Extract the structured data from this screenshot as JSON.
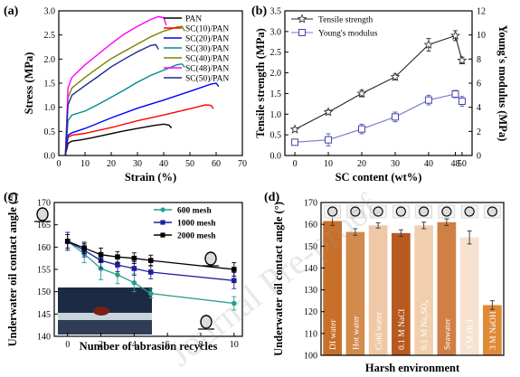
{
  "watermark": "Journal Pre-proof",
  "chart_data": [
    {
      "panel": "(a)",
      "type": "line",
      "xlabel": "Strain (%)",
      "ylabel": "Stress (MPa)",
      "xlim": [
        0,
        70
      ],
      "ylim": [
        0,
        3.0
      ],
      "xticks": [
        0,
        10,
        20,
        30,
        40,
        50,
        60,
        70
      ],
      "yticks": [
        0.0,
        0.5,
        1.0,
        1.5,
        2.0,
        2.5,
        3.0
      ],
      "legend_position": "top-right",
      "series": [
        {
          "name": "PAN",
          "color": "#000000",
          "x": [
            2.5,
            3.5,
            5,
            8,
            12,
            18,
            24,
            30,
            36,
            40,
            42,
            43
          ],
          "y": [
            0.0,
            0.25,
            0.3,
            0.32,
            0.36,
            0.43,
            0.5,
            0.56,
            0.62,
            0.65,
            0.63,
            0.57
          ]
        },
        {
          "name": "SC(10)/PAN",
          "color": "#ff0000",
          "x": [
            2.5,
            3.5,
            5,
            10,
            20,
            30,
            40,
            50,
            56,
            58,
            59
          ],
          "y": [
            0.0,
            0.38,
            0.42,
            0.46,
            0.58,
            0.72,
            0.84,
            0.97,
            1.05,
            1.04,
            0.97
          ]
        },
        {
          "name": "SC(20)/PAN",
          "color": "#0000ff",
          "x": [
            2.5,
            3.5,
            5,
            10,
            20,
            30,
            40,
            50,
            58,
            60,
            61
          ],
          "y": [
            0.0,
            0.42,
            0.47,
            0.56,
            0.78,
            0.98,
            1.15,
            1.33,
            1.48,
            1.5,
            1.43
          ]
        },
        {
          "name": "SC(30)/PAN",
          "color": "#008b8b",
          "x": [
            2.5,
            3.5,
            5,
            10,
            15,
            20,
            25,
            30,
            35,
            40,
            45,
            47,
            48
          ],
          "y": [
            0.0,
            0.72,
            0.84,
            0.92,
            1.06,
            1.21,
            1.36,
            1.52,
            1.66,
            1.77,
            1.88,
            1.9,
            1.83
          ]
        },
        {
          "name": "SC(40)/PAN",
          "color": "#808000",
          "x": [
            2.5,
            3.5,
            5,
            10,
            15,
            20,
            25,
            30,
            35,
            40,
            45,
            47,
            48
          ],
          "y": [
            0.0,
            1.2,
            1.4,
            1.62,
            1.82,
            2.01,
            2.16,
            2.31,
            2.46,
            2.58,
            2.66,
            2.68,
            2.58
          ]
        },
        {
          "name": "SC(48)/PAN",
          "color": "#ff00ff",
          "x": [
            2.5,
            3.5,
            5,
            10,
            15,
            20,
            25,
            30,
            35,
            38,
            40,
            41
          ],
          "y": [
            0.0,
            1.4,
            1.62,
            1.88,
            2.1,
            2.32,
            2.52,
            2.68,
            2.82,
            2.88,
            2.86,
            2.7
          ]
        },
        {
          "name": "SC(50)/PAN",
          "color": "#1a2a8c",
          "x": [
            2.5,
            3.5,
            5,
            10,
            15,
            20,
            25,
            30,
            35,
            37,
            38
          ],
          "y": [
            0.0,
            1.05,
            1.25,
            1.45,
            1.64,
            1.84,
            2.0,
            2.15,
            2.28,
            2.3,
            2.2
          ]
        }
      ]
    },
    {
      "panel": "(b)",
      "type": "line",
      "xlabel": "SC content (wt%)",
      "ylabel": "Tensile strength (MPa)",
      "ylabel_right": "Young's modulus (MPa)",
      "xlim": [
        -3,
        53
      ],
      "ylim": [
        0,
        3.5
      ],
      "ylim_right": [
        0,
        12
      ],
      "xticks": [
        0,
        10,
        20,
        30,
        40,
        48,
        50
      ],
      "yticks": [
        0.0,
        0.5,
        1.0,
        1.5,
        2.0,
        2.5,
        3.0,
        3.5
      ],
      "yticks_right": [
        0,
        2,
        4,
        6,
        8,
        10,
        12
      ],
      "legend_position": "top-left",
      "series": [
        {
          "name": "Tensile strength",
          "marker": "star",
          "axis": "left",
          "x": [
            0,
            10,
            20,
            30,
            40,
            48,
            50
          ],
          "y": [
            0.63,
            1.05,
            1.5,
            1.9,
            2.68,
            2.9,
            2.3
          ],
          "err": [
            0.04,
            0.05,
            0.08,
            0.07,
            0.15,
            0.12,
            0.08
          ]
        },
        {
          "name": "Young's modulus",
          "marker": "square",
          "axis": "right",
          "x": [
            0,
            10,
            20,
            30,
            40,
            48,
            50
          ],
          "y": [
            1.1,
            1.3,
            2.2,
            3.2,
            4.6,
            5.1,
            4.5
          ],
          "err": [
            0.2,
            0.5,
            0.4,
            0.4,
            0.4,
            0.3,
            0.4
          ]
        }
      ]
    },
    {
      "panel": "(c)",
      "type": "line",
      "xlabel": "Number of abrasion recycles",
      "ylabel": "Underwater oil contact angle (°)",
      "xlim": [
        -0.8,
        10.5
      ],
      "ylim": [
        140,
        170
      ],
      "xticks": [
        0,
        2,
        4,
        6,
        8,
        10
      ],
      "yticks": [
        140,
        145,
        150,
        155,
        160,
        165,
        170
      ],
      "legend_position": "top-right",
      "series": [
        {
          "name": "600 mesh",
          "color": "#2a9d8f",
          "x": [
            0,
            1,
            2,
            3,
            4,
            5,
            10
          ],
          "y": [
            161.3,
            158.5,
            155.2,
            153.8,
            152.0,
            149.6,
            147.4
          ],
          "err": [
            2.0,
            2.0,
            2.5,
            2.0,
            2.0,
            1.0,
            1.5
          ]
        },
        {
          "name": "1000 mesh",
          "color": "#1f1f9e",
          "x": [
            0,
            1,
            2,
            3,
            4,
            5,
            10
          ],
          "y": [
            161.3,
            159.3,
            157.0,
            156.0,
            155.2,
            154.4,
            152.5
          ],
          "err": [
            2.0,
            1.5,
            1.8,
            1.5,
            1.5,
            1.5,
            1.8
          ]
        },
        {
          "name": "2000 mesh",
          "color": "#000000",
          "x": [
            0,
            1,
            2,
            3,
            4,
            5,
            10
          ],
          "y": [
            161.3,
            159.8,
            158.3,
            157.8,
            157.5,
            157.0,
            155.0
          ],
          "err": [
            1.5,
            1.3,
            1.5,
            1.2,
            1.2,
            1.2,
            1.5
          ]
        }
      ]
    },
    {
      "panel": "(d)",
      "type": "bar",
      "xlabel": "Harsh environment",
      "ylabel": "Underwater oil contact angle (°)",
      "ylim": [
        100,
        170
      ],
      "yticks": [
        100,
        110,
        120,
        130,
        140,
        150,
        160,
        170
      ],
      "categories": [
        "DI water",
        "Hot water",
        "Cold water",
        "0.1 M NaCl",
        "0.1 M Na₂SO₄",
        "Seawater",
        "3 M HCl",
        "3 M NaOH"
      ],
      "values": [
        161.5,
        156.5,
        159.5,
        156.0,
        159.5,
        161.0,
        154.0,
        123.0
      ],
      "err": [
        2.0,
        1.5,
        1.2,
        1.5,
        1.5,
        1.5,
        3.0,
        2.0
      ],
      "colors": [
        "#c8702a",
        "#d38a4d",
        "#efc9a7",
        "#b85a1f",
        "#f1cfae",
        "#d07f45",
        "#f7e2cf",
        "#e08a38"
      ]
    }
  ]
}
